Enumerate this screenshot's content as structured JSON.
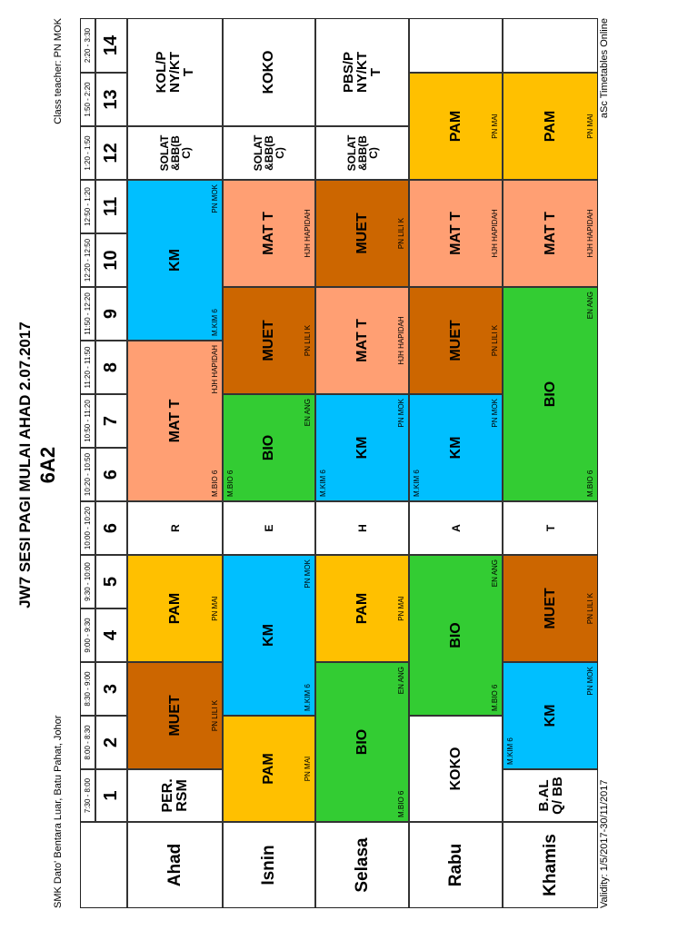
{
  "header": {
    "title": "JW7 SESI PAGI MULAI AHAD 2.07.2017",
    "class_name": "6A2",
    "school": "SMK Dato' Bentara Luar, Batu Pahat, Johor",
    "class_teacher": "Class teacher: PN MOK"
  },
  "footer": {
    "validity": "Validity: 1/5/2017-30/11/2017",
    "credit": "aSc Timetables Online"
  },
  "colors": {
    "MUET": "#cc6600",
    "PAM": "#ffc000",
    "KM": "#00bfff",
    "MATT": "#ff9f73",
    "BIO": "#33cc33",
    "blank": "#ffffff"
  },
  "periods": [
    {
      "num": "1",
      "time": "7:30 - 8:00"
    },
    {
      "num": "2",
      "time": "8:00 - 8:30"
    },
    {
      "num": "3",
      "time": "8:30 - 9:00"
    },
    {
      "num": "4",
      "time": "9:00 - 9:30"
    },
    {
      "num": "5",
      "time": "9:30 - 10:00"
    },
    {
      "num": "6",
      "time": "10:00 - 10:20"
    },
    {
      "num": "6",
      "time": "10:20 - 10:50"
    },
    {
      "num": "7",
      "time": "10:50 - 11:20"
    },
    {
      "num": "8",
      "time": "11:20 - 11:50"
    },
    {
      "num": "9",
      "time": "11:50 - 12:20"
    },
    {
      "num": "10",
      "time": "12:20 - 12:50"
    },
    {
      "num": "11",
      "time": "12:50 - 1:20"
    },
    {
      "num": "12",
      "time": "1:20 - 1:50"
    },
    {
      "num": "13",
      "time": "1:50 - 2:20"
    },
    {
      "num": "14",
      "time": "2:20 - 3:30"
    }
  ],
  "break_letters": [
    "R",
    "E",
    "H",
    "A",
    "T"
  ],
  "days": [
    {
      "name": "Ahad",
      "lessons": [
        {
          "subject": "PER. RSM",
          "room": "",
          "teacher": ""
        },
        {
          "subject": "MUET",
          "room": "",
          "teacher": "PN LILI K"
        },
        {
          "subject": "PAM",
          "room": "",
          "teacher": "PN MAI"
        },
        {
          "subject": "MAT T",
          "room": "M.BIO 6",
          "teacher": "HJH HAPIDAH"
        },
        {
          "subject": "KM",
          "room": "M.KIM 6",
          "teacher": "PN MOK"
        },
        {
          "subject": "SOLAT &BB(BC)",
          "room": "",
          "teacher": ""
        },
        {
          "subject": "KOL/PNY/KTT",
          "room": "",
          "teacher": ""
        }
      ]
    },
    {
      "name": "Isnin",
      "lessons": [
        {
          "subject": "PAM",
          "room": "",
          "teacher": "PN MAI"
        },
        {
          "subject": "KM",
          "room": "M.KIM 6",
          "teacher": "PN MOK"
        },
        {
          "subject": "BIO",
          "room": "M.BIO 6",
          "teacher": "EN ANG"
        },
        {
          "subject": "MUET",
          "room": "",
          "teacher": "PN LILI K"
        },
        {
          "subject": "MAT T",
          "room": "",
          "teacher": "HJH HAPIDAH"
        },
        {
          "subject": "SOLAT &BB(BC)",
          "room": "",
          "teacher": ""
        },
        {
          "subject": "KOKO",
          "room": "",
          "teacher": ""
        }
      ]
    },
    {
      "name": "Selasa",
      "lessons": [
        {
          "subject": "BIO",
          "room": "M.BIO 6",
          "teacher": "EN ANG"
        },
        {
          "subject": "PAM",
          "room": "",
          "teacher": "PN MAI"
        },
        {
          "subject": "KM",
          "room": "M.KIM 6",
          "teacher": "PN MOK"
        },
        {
          "subject": "MAT T",
          "room": "",
          "teacher": "HJH HAPIDAH"
        },
        {
          "subject": "MUET",
          "room": "",
          "teacher": "PN LILI K"
        },
        {
          "subject": "SOLAT &BB(BC)",
          "room": "",
          "teacher": ""
        },
        {
          "subject": "PBS/PNY/KTT",
          "room": "",
          "teacher": ""
        }
      ]
    },
    {
      "name": "Rabu",
      "lessons": [
        {
          "subject": "KOKO",
          "room": "",
          "teacher": ""
        },
        {
          "subject": "BIO",
          "room": "M.BIO 6",
          "teacher": "EN ANG"
        },
        {
          "subject": "KM",
          "room": "M.KIM 6",
          "teacher": "PN MOK"
        },
        {
          "subject": "MUET",
          "room": "",
          "teacher": "PN LILI K"
        },
        {
          "subject": "MAT T",
          "room": "",
          "teacher": "HJH HAPIDAH"
        },
        {
          "subject": "PAM",
          "room": "",
          "teacher": "PN MAI"
        },
        {
          "subject": "",
          "room": "",
          "teacher": ""
        }
      ]
    },
    {
      "name": "Khamis",
      "lessons": [
        {
          "subject": "B.ALQ/ BB",
          "room": "",
          "teacher": ""
        },
        {
          "subject": "KM",
          "room": "M.KIM 6",
          "teacher": "PN MOK"
        },
        {
          "subject": "MUET",
          "room": "",
          "teacher": "PN LILI K"
        },
        {
          "subject": "BIO",
          "room": "M.BIO 6",
          "teacher": "EN ANG"
        },
        {
          "subject": "MAT T",
          "room": "",
          "teacher": "HJH HAPIDAH"
        },
        {
          "subject": "PAM",
          "room": "",
          "teacher": "PN MAI"
        },
        {
          "subject": "",
          "room": "",
          "teacher": ""
        }
      ]
    }
  ]
}
